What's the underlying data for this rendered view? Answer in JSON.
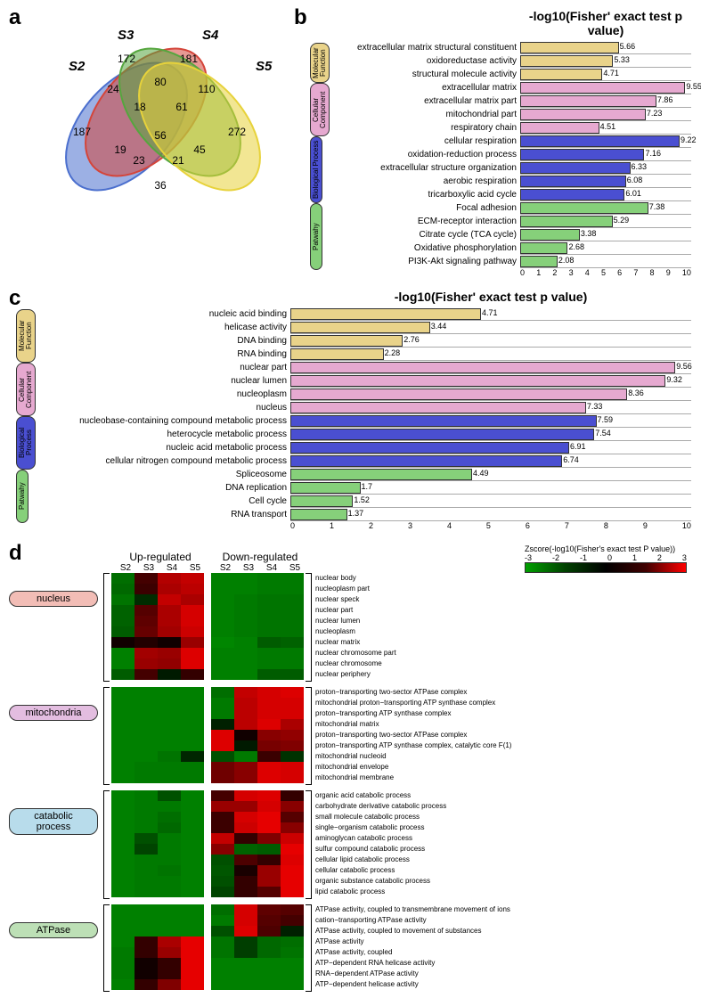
{
  "panel_letters": {
    "a": "a",
    "b": "b",
    "c": "c",
    "d": "d"
  },
  "venn": {
    "sets": [
      "S2",
      "S3",
      "S4",
      "S5"
    ],
    "set_colors": {
      "S2": "#4b6fce",
      "S3": "#d4453a",
      "S4": "#55a63e",
      "S5": "#e7d23b"
    },
    "values": {
      "S2_only": 187,
      "S3_only": 172,
      "S4_only": 181,
      "S5_only": 272,
      "S2_S3": 24,
      "S3_S4": 80,
      "S4_S5": 110,
      "S2_S5": 36,
      "S2_S4": 19,
      "S3_S5": 45,
      "S2_S3_S4": 18,
      "S3_S4_S5": 61,
      "S2_S3_S5": 21,
      "S2_S4_S5": 23,
      "all": 56
    }
  },
  "chart_b": {
    "title": "-log10(Fisher' exact test p value)",
    "xmax": 10,
    "categories": [
      {
        "name": "Molecular Function",
        "color": "#e9d38a",
        "rows": [
          {
            "label": "extracellular matrix structural constituent",
            "value": 5.66
          },
          {
            "label": "oxidoreductase activity",
            "value": 5.33
          },
          {
            "label": "structural molecule activity",
            "value": 4.71
          }
        ]
      },
      {
        "name": "Cellular Component",
        "color": "#e6a9d0",
        "rows": [
          {
            "label": "extracellular matrix",
            "value": 9.55
          },
          {
            "label": "extracellular matrix part",
            "value": 7.86
          },
          {
            "label": "mitochondrial part",
            "value": 7.23
          },
          {
            "label": "respiratory chain",
            "value": 4.51
          }
        ]
      },
      {
        "name": "Biological Process",
        "color": "#4a4fd1",
        "rows": [
          {
            "label": "cellular respiration",
            "value": 9.22
          },
          {
            "label": "oxidation-reduction process",
            "value": 7.16
          },
          {
            "label": "extracellular structure organization",
            "value": 6.33
          },
          {
            "label": "aerobic respiration",
            "value": 6.08
          },
          {
            "label": "tricarboxylic acid cycle",
            "value": 6.01
          }
        ]
      },
      {
        "name": "Patwahy",
        "color": "#86d07a",
        "rows": [
          {
            "label": "Focal adhesion",
            "value": 7.38
          },
          {
            "label": "ECM-receptor interaction",
            "value": 5.29
          },
          {
            "label": "Citrate cycle (TCA cycle)",
            "value": 3.38
          },
          {
            "label": "Oxidative phosphorylation",
            "value": 2.68
          },
          {
            "label": "PI3K-Akt signaling pathway",
            "value": 2.08
          }
        ]
      }
    ]
  },
  "chart_c": {
    "title": "-log10(Fisher' exact test p value)",
    "xmax": 10,
    "categories": [
      {
        "name": "Molecular Function",
        "color": "#e9d38a",
        "rows": [
          {
            "label": "nucleic acid binding",
            "value": 4.71
          },
          {
            "label": "helicase activity",
            "value": 3.44
          },
          {
            "label": "DNA binding",
            "value": 2.76
          },
          {
            "label": "RNA binding",
            "value": 2.28
          }
        ]
      },
      {
        "name": "Cellular Component",
        "color": "#e6a9d0",
        "rows": [
          {
            "label": "nuclear part",
            "value": 9.56
          },
          {
            "label": "nuclear lumen",
            "value": 9.32
          },
          {
            "label": "nucleoplasm",
            "value": 8.36
          },
          {
            "label": "nucleus",
            "value": 7.33
          }
        ]
      },
      {
        "name": "Biological Process",
        "color": "#4a4fd1",
        "rows": [
          {
            "label": "nucleobase-containing compound metabolic process",
            "value": 7.59
          },
          {
            "label": "heterocycle metabolic process",
            "value": 7.54
          },
          {
            "label": "nucleic acid metabolic process",
            "value": 6.91
          },
          {
            "label": "cellular nitrogen compound metabolic process",
            "value": 6.74
          }
        ]
      },
      {
        "name": "Patwahy",
        "color": "#86d07a",
        "rows": [
          {
            "label": "Spliceosome",
            "value": 4.49
          },
          {
            "label": "DNA replication",
            "value": 1.7
          },
          {
            "label": "Cell cycle",
            "value": 1.52
          },
          {
            "label": "RNA transport",
            "value": 1.37
          }
        ]
      }
    ]
  },
  "heatmap": {
    "col_group_labels": [
      "Up-regulated",
      "Down-regulated"
    ],
    "cols": [
      "S2",
      "S3",
      "S4",
      "S5"
    ],
    "zscore_label": "Zscore(-log10(Fisher's exact test P value))",
    "zscore_ticks": [
      "-3",
      "-2",
      "-1",
      "0",
      "1",
      "2",
      "3"
    ],
    "groups": [
      {
        "name": "nucleus",
        "pill_color": "#f2bdb6",
        "rows": [
          {
            "label": "nuclear body",
            "up": [
              -1.5,
              0.8,
              2.1,
              2.3
            ],
            "down": [
              -1.8,
              -1.8,
              -1.7,
              -1.7
            ]
          },
          {
            "label": "nucleoplasm part",
            "up": [
              -1.4,
              0.7,
              2.0,
              2.2
            ],
            "down": [
              -1.8,
              -1.8,
              -1.7,
              -1.7
            ]
          },
          {
            "label": "nuclear speck",
            "up": [
              -1.6,
              -0.4,
              2.3,
              2.0
            ],
            "down": [
              -1.8,
              -1.7,
              -1.6,
              -1.6
            ]
          },
          {
            "label": "nuclear part",
            "up": [
              -1.3,
              1.0,
              2.0,
              2.5
            ],
            "down": [
              -1.8,
              -1.7,
              -1.6,
              -1.6
            ]
          },
          {
            "label": "nuclear lumen",
            "up": [
              -1.3,
              1.1,
              2.0,
              2.5
            ],
            "down": [
              -1.8,
              -1.7,
              -1.6,
              -1.6
            ]
          },
          {
            "label": "nucleoplasm",
            "up": [
              -1.2,
              1.2,
              1.9,
              2.4
            ],
            "down": [
              -1.8,
              -1.7,
              -1.6,
              -1.6
            ]
          },
          {
            "label": "nuclear matrix",
            "up": [
              0.2,
              0.4,
              0.2,
              1.8
            ],
            "down": [
              -1.9,
              -1.8,
              -1.2,
              -1.3
            ]
          },
          {
            "label": "nuclear chromosome part",
            "up": [
              -1.8,
              1.9,
              1.8,
              2.6
            ],
            "down": [
              -1.8,
              -1.8,
              -1.7,
              -1.7
            ]
          },
          {
            "label": "nuclear chromosome",
            "up": [
              -1.8,
              1.8,
              1.7,
              2.6
            ],
            "down": [
              -1.8,
              -1.8,
              -1.7,
              -1.7
            ]
          },
          {
            "label": "nuclear periphery",
            "up": [
              -1.2,
              0.8,
              -0.1,
              0.6
            ],
            "down": [
              -1.8,
              -1.8,
              -1.2,
              -1.2
            ]
          }
        ]
      },
      {
        "name": "mitochondria",
        "pill_color": "#e3bde0",
        "rows": [
          {
            "label": "proton−transporting two-sector ATPase complex",
            "up": [
              -1.8,
              -1.8,
              -1.8,
              -1.8
            ],
            "down": [
              -1.5,
              2.3,
              2.5,
              2.6
            ]
          },
          {
            "label": "mitochondrial proton−transporting ATP synthase complex",
            "up": [
              -1.8,
              -1.8,
              -1.8,
              -1.8
            ],
            "down": [
              -1.7,
              2.2,
              2.5,
              2.5
            ]
          },
          {
            "label": "proton−transporting ATP synthase complex",
            "up": [
              -1.8,
              -1.8,
              -1.8,
              -1.8
            ],
            "down": [
              -1.7,
              2.2,
              2.5,
              2.5
            ]
          },
          {
            "label": "mitochondrial matrix",
            "up": [
              -1.8,
              -1.8,
              -1.8,
              -1.8
            ],
            "down": [
              -0.2,
              2.2,
              2.6,
              2.0
            ]
          },
          {
            "label": "proton−transporting two-sector ATPase complex",
            "up": [
              -1.8,
              -1.8,
              -1.8,
              -1.8
            ],
            "down": [
              2.6,
              0.2,
              1.6,
              1.7
            ]
          },
          {
            "label": "proton−transporting ATP synthase complex, catalytic core F(1)",
            "up": [
              -1.8,
              -1.8,
              -1.8,
              -1.8
            ],
            "down": [
              2.6,
              -0.1,
              1.4,
              1.5
            ]
          },
          {
            "label": "mitochondrial nucleoid",
            "up": [
              -1.8,
              -1.8,
              -1.6,
              -0.3
            ],
            "down": [
              -1.0,
              -1.7,
              0.7,
              -0.5
            ]
          },
          {
            "label": "mitochondrial envelope",
            "up": [
              -1.8,
              -1.7,
              -1.7,
              -1.7
            ],
            "down": [
              1.3,
              1.6,
              2.6,
              2.5
            ]
          },
          {
            "label": "mitochondrial membrane",
            "up": [
              -1.8,
              -1.7,
              -1.7,
              -1.7
            ],
            "down": [
              1.3,
              1.6,
              2.6,
              2.5
            ]
          }
        ]
      },
      {
        "name": "catabolic process",
        "pill_color": "#b8dceb",
        "rows": [
          {
            "label": "organic acid catabolic process",
            "up": [
              -1.8,
              -1.7,
              -1.0,
              -1.8
            ],
            "down": [
              0.8,
              2.5,
              2.6,
              0.6
            ]
          },
          {
            "label": "carbohydrate derivative catabolic process",
            "up": [
              -1.8,
              -1.7,
              -1.7,
              -1.8
            ],
            "down": [
              1.8,
              1.8,
              2.5,
              1.6
            ]
          },
          {
            "label": "small molecule catabolic process",
            "up": [
              -1.8,
              -1.7,
              -1.5,
              -1.8
            ],
            "down": [
              0.7,
              2.5,
              2.7,
              1.0
            ]
          },
          {
            "label": "single−organism catabolic process",
            "up": [
              -1.8,
              -1.7,
              -1.4,
              -1.8
            ],
            "down": [
              0.7,
              2.4,
              2.7,
              1.6
            ]
          },
          {
            "label": "aminoglycan catabolic process",
            "up": [
              -1.8,
              -1.0,
              -1.7,
              -1.8
            ],
            "down": [
              2.3,
              0.6,
              1.5,
              2.4
            ]
          },
          {
            "label": "sulfur compound catabolic process",
            "up": [
              -1.8,
              -0.8,
              -1.7,
              -1.8
            ],
            "down": [
              1.6,
              -1.3,
              -1.2,
              2.7
            ]
          },
          {
            "label": "cellular lipid catabolic process",
            "up": [
              -1.8,
              -1.7,
              -1.7,
              -1.8
            ],
            "down": [
              -1.0,
              0.9,
              0.6,
              2.6
            ]
          },
          {
            "label": "cellular catabolic process",
            "up": [
              -1.8,
              -1.7,
              -1.6,
              -1.8
            ],
            "down": [
              -1.1,
              0.3,
              1.8,
              2.7
            ]
          },
          {
            "label": "organic substance catabolic process",
            "up": [
              -1.8,
              -1.7,
              -1.7,
              -1.8
            ],
            "down": [
              -1.0,
              0.6,
              1.8,
              2.7
            ]
          },
          {
            "label": "lipid catabolic process",
            "up": [
              -1.8,
              -1.7,
              -1.7,
              -1.8
            ],
            "down": [
              -0.8,
              0.6,
              1.0,
              2.7
            ]
          }
        ]
      },
      {
        "name": "ATPase",
        "pill_color": "#bde0b6",
        "rows": [
          {
            "label": "ATPase activity, coupled to transmembrane movement of ions",
            "up": [
              -1.8,
              -1.8,
              -1.8,
              -1.8
            ],
            "down": [
              -1.5,
              2.5,
              1.1,
              1.0
            ]
          },
          {
            "label": "cation−transporting ATPase activity",
            "up": [
              -1.8,
              -1.8,
              -1.8,
              -1.8
            ],
            "down": [
              -1.7,
              2.5,
              1.0,
              0.8
            ]
          },
          {
            "label": "ATPase activity, coupled to movement of substances",
            "up": [
              -1.8,
              -1.8,
              -1.8,
              -1.8
            ],
            "down": [
              -1.0,
              2.6,
              0.9,
              -0.2
            ]
          },
          {
            "label": "ATPase activity",
            "up": [
              -1.8,
              0.6,
              2.0,
              2.7
            ],
            "down": [
              -1.6,
              -0.7,
              -1.4,
              -1.5
            ]
          },
          {
            "label": "ATPase activity, coupled",
            "up": [
              -1.7,
              0.6,
              1.8,
              2.7
            ],
            "down": [
              -1.6,
              -0.7,
              -1.4,
              -1.6
            ]
          },
          {
            "label": "ATP−dependent RNA helicase activity",
            "up": [
              -1.7,
              0.2,
              0.6,
              2.7
            ],
            "down": [
              -1.8,
              -1.8,
              -1.8,
              -1.8
            ]
          },
          {
            "label": "RNA−dependent ATPase activity",
            "up": [
              -1.7,
              0.2,
              0.6,
              2.7
            ],
            "down": [
              -1.8,
              -1.8,
              -1.8,
              -1.8
            ]
          },
          {
            "label": "ATP−dependent helicase activity",
            "up": [
              -1.8,
              0.6,
              1.5,
              2.7
            ],
            "down": [
              -1.8,
              -1.8,
              -1.8,
              -1.8
            ]
          }
        ]
      }
    ]
  }
}
